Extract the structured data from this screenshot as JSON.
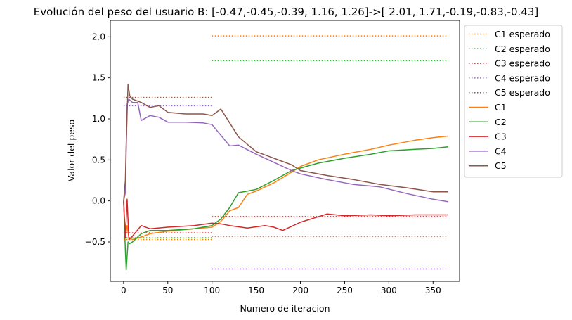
{
  "chart_data": {
    "type": "line",
    "title": "Evolución del peso del usuario B: [-0.47,-0.45,-0.39, 1.16, 1.26]->[ 2.01, 1.71,-0.19,-0.83,-0.43]",
    "xlabel": "Numero de iteracion",
    "ylabel": "Valor del peso",
    "xlim": [
      -15,
      380
    ],
    "ylim": [
      -0.98,
      2.2
    ],
    "xticks": [
      0,
      50,
      100,
      150,
      200,
      250,
      300,
      350
    ],
    "yticks": [
      -0.5,
      0.0,
      0.5,
      1.0,
      1.5,
      2.0
    ],
    "xtick_labels": [
      "0",
      "50",
      "100",
      "150",
      "200",
      "250",
      "300",
      "350"
    ],
    "ytick_labels": [
      "−0.5",
      "0.0",
      "0.5",
      "1.0",
      "1.5",
      "2.0"
    ],
    "grid": false,
    "legend_placement": "outside-right",
    "expected_series": [
      {
        "name": "C1 esperado",
        "color": "#ff7f0e",
        "segments": [
          {
            "x": [
              0,
              100
            ],
            "y": -0.47
          },
          {
            "x": [
              100,
              367
            ],
            "y": 2.01
          }
        ]
      },
      {
        "name": "C2 esperado",
        "color": "#2ca02c",
        "segments": [
          {
            "x": [
              0,
              100
            ],
            "y": -0.45
          },
          {
            "x": [
              100,
              367
            ],
            "y": 1.71
          }
        ]
      },
      {
        "name": "C3 esperado",
        "color": "#d62728",
        "segments": [
          {
            "x": [
              0,
              100
            ],
            "y": -0.39
          },
          {
            "x": [
              100,
              367
            ],
            "y": -0.19
          }
        ]
      },
      {
        "name": "C4 esperado",
        "color": "#9467bd",
        "segments": [
          {
            "x": [
              0,
              100
            ],
            "y": 1.16
          },
          {
            "x": [
              100,
              367
            ],
            "y": -0.83
          }
        ]
      },
      {
        "name": "C5 esperado",
        "color": "#8c564b",
        "segments": [
          {
            "x": [
              0,
              100
            ],
            "y": 1.26
          },
          {
            "x": [
              100,
              367
            ],
            "y": -0.43
          }
        ]
      }
    ],
    "series": [
      {
        "name": "C1",
        "color": "#ff7f0e",
        "x": [
          0,
          2,
          4,
          6,
          10,
          20,
          30,
          50,
          80,
          100,
          110,
          120,
          130,
          140,
          150,
          170,
          190,
          200,
          220,
          250,
          280,
          300,
          330,
          350,
          367
        ],
        "y": [
          0.0,
          -0.45,
          -0.3,
          -0.45,
          -0.47,
          -0.44,
          -0.4,
          -0.37,
          -0.34,
          -0.32,
          -0.25,
          -0.12,
          -0.08,
          0.08,
          0.12,
          0.22,
          0.35,
          0.42,
          0.5,
          0.57,
          0.63,
          0.68,
          0.74,
          0.77,
          0.79
        ]
      },
      {
        "name": "C2",
        "color": "#2ca02c",
        "x": [
          0,
          2,
          3,
          5,
          7,
          10,
          20,
          30,
          50,
          80,
          100,
          110,
          120,
          130,
          140,
          150,
          170,
          190,
          200,
          220,
          250,
          280,
          300,
          330,
          350,
          367
        ],
        "y": [
          0.0,
          -0.6,
          -0.84,
          -0.5,
          -0.52,
          -0.5,
          -0.4,
          -0.36,
          -0.36,
          -0.34,
          -0.3,
          -0.22,
          -0.08,
          0.1,
          0.12,
          0.14,
          0.25,
          0.37,
          0.4,
          0.46,
          0.52,
          0.57,
          0.61,
          0.63,
          0.64,
          0.66
        ]
      },
      {
        "name": "C3",
        "color": "#d62728",
        "x": [
          0,
          2,
          4,
          6,
          10,
          20,
          30,
          50,
          80,
          100,
          110,
          120,
          140,
          160,
          170,
          180,
          200,
          230,
          250,
          280,
          300,
          330,
          350,
          367
        ],
        "y": [
          0.0,
          -0.45,
          0.02,
          -0.47,
          -0.43,
          -0.3,
          -0.34,
          -0.32,
          -0.3,
          -0.27,
          -0.28,
          -0.3,
          -0.33,
          -0.3,
          -0.32,
          -0.36,
          -0.26,
          -0.16,
          -0.18,
          -0.17,
          -0.18,
          -0.17,
          -0.17,
          -0.17
        ]
      },
      {
        "name": "C4",
        "color": "#9467bd",
        "x": [
          0,
          2,
          4,
          6,
          10,
          16,
          20,
          30,
          40,
          50,
          70,
          90,
          100,
          110,
          120,
          130,
          150,
          170,
          190,
          200,
          230,
          260,
          290,
          320,
          350,
          367
        ],
        "y": [
          0.0,
          0.1,
          1.18,
          1.24,
          1.2,
          1.2,
          0.98,
          1.04,
          1.02,
          0.96,
          0.96,
          0.95,
          0.93,
          0.8,
          0.67,
          0.68,
          0.57,
          0.47,
          0.37,
          0.33,
          0.26,
          0.2,
          0.17,
          0.09,
          0.02,
          -0.01
        ]
      },
      {
        "name": "C5",
        "color": "#8c564b",
        "x": [
          0,
          2,
          3,
          5,
          7,
          10,
          20,
          30,
          40,
          50,
          70,
          90,
          100,
          110,
          120,
          130,
          150,
          170,
          190,
          200,
          230,
          260,
          290,
          320,
          350,
          367
        ],
        "y": [
          0.0,
          0.25,
          0.7,
          1.42,
          1.28,
          1.24,
          1.2,
          1.14,
          1.16,
          1.08,
          1.06,
          1.06,
          1.04,
          1.12,
          0.95,
          0.78,
          0.6,
          0.52,
          0.44,
          0.37,
          0.31,
          0.26,
          0.2,
          0.16,
          0.11,
          0.11
        ]
      }
    ]
  }
}
